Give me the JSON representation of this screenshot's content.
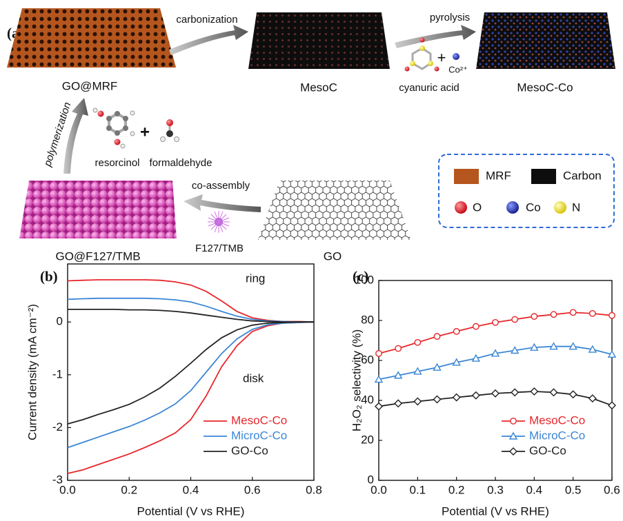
{
  "schematic": {
    "panel_label": "(a)",
    "go_mrf": "GO@MRF",
    "carbonization": "carbonization",
    "mesoc": "MesoC",
    "pyrolysis": "pyrolysis",
    "cyanuric_acid": "cyanuric acid",
    "co_ion": "Co²⁺",
    "mesoc_co": "MesoC-Co",
    "polymerization": "polymerization",
    "resorcinol": "resorcinol",
    "formaldehyde": "formaldehyde",
    "co_assembly": "co-assembly",
    "f127_tmb": "F127/TMB",
    "go_f127_tmb": "GO@F127/TMB",
    "go": "GO",
    "plus": "+",
    "legend": {
      "mrf": "MRF",
      "carbon": "Carbon",
      "o": "O",
      "co": "Co",
      "n": "N"
    }
  },
  "chart_data": [
    {
      "type": "line",
      "panel_label": "(b)",
      "xlabel": "Potential (V vs RHE)",
      "ylabel": "Current density (mA cm⁻²)",
      "annotations": [
        "ring",
        "disk"
      ],
      "x": [
        0,
        0.05,
        0.1,
        0.15,
        0.2,
        0.25,
        0.3,
        0.35,
        0.4,
        0.45,
        0.5,
        0.55,
        0.6,
        0.65,
        0.7,
        0.75,
        0.8
      ],
      "series": [
        {
          "name": "MesoC-Co",
          "color": "#e8262a",
          "values": [
            -2.87,
            -2.8,
            -2.7,
            -2.6,
            -2.5,
            -2.38,
            -2.25,
            -2.1,
            -1.85,
            -1.4,
            -0.85,
            -0.45,
            -0.18,
            -0.07,
            -0.02,
            -0.01,
            0
          ],
          "ring_values": [
            0.78,
            0.79,
            0.8,
            0.8,
            0.8,
            0.8,
            0.79,
            0.76,
            0.7,
            0.58,
            0.4,
            0.2,
            0.08,
            0.03,
            0.01,
            0.01,
            0
          ]
        },
        {
          "name": "MicroC-Co",
          "color": "#3a86d4",
          "values": [
            -2.38,
            -2.28,
            -2.18,
            -2.08,
            -1.98,
            -1.86,
            -1.72,
            -1.55,
            -1.3,
            -0.95,
            -0.6,
            -0.32,
            -0.14,
            -0.05,
            -0.02,
            -0.01,
            0
          ],
          "ring_values": [
            0.43,
            0.44,
            0.45,
            0.45,
            0.45,
            0.45,
            0.44,
            0.42,
            0.38,
            0.3,
            0.2,
            0.11,
            0.05,
            0.02,
            0.01,
            0,
            0
          ]
        },
        {
          "name": "GO-Co",
          "color": "#222222",
          "values": [
            -1.93,
            -1.85,
            -1.75,
            -1.66,
            -1.56,
            -1.42,
            -1.25,
            -1.03,
            -0.78,
            -0.52,
            -0.3,
            -0.15,
            -0.06,
            -0.02,
            -0.01,
            0,
            0
          ],
          "ring_values": [
            0.24,
            0.24,
            0.24,
            0.24,
            0.23,
            0.23,
            0.22,
            0.2,
            0.17,
            0.13,
            0.09,
            0.05,
            0.02,
            0.01,
            0,
            0,
            0
          ]
        }
      ],
      "xlim": [
        0,
        0.8
      ],
      "xticks": [
        {
          "value": 0,
          "label": "0.0"
        },
        {
          "value": 0.2,
          "label": "0.2"
        },
        {
          "value": 0.4,
          "label": "0.4"
        },
        {
          "value": 0.6,
          "label": "0.6"
        },
        {
          "value": 0.8,
          "label": "0.8"
        }
      ],
      "ylim": [
        -3,
        1.1
      ],
      "yticks": [
        -3,
        -2,
        -1,
        0
      ],
      "legend": "lower right"
    },
    {
      "type": "line",
      "panel_label": "(c)",
      "xlabel": "Potential (V vs RHE)",
      "ylabel": "H₂O₂ selectivity (%)",
      "x": [
        0,
        0.05,
        0.1,
        0.15,
        0.2,
        0.25,
        0.3,
        0.35,
        0.4,
        0.45,
        0.5,
        0.55,
        0.6
      ],
      "series": [
        {
          "name": "MesoC-Co",
          "color": "#e8262a",
          "marker": "circle",
          "values": [
            63.5,
            66,
            69,
            72,
            74.5,
            77,
            79,
            80.5,
            82,
            83,
            84,
            83.5,
            82.5
          ]
        },
        {
          "name": "MicroC-Co",
          "color": "#3a86d4",
          "marker": "triangle",
          "values": [
            50.5,
            52.5,
            54.5,
            56.5,
            59,
            61,
            63.5,
            65,
            66.5,
            67,
            67,
            65.5,
            63
          ]
        },
        {
          "name": "GO-Co",
          "color": "#222222",
          "marker": "diamond",
          "values": [
            37,
            38.5,
            39.5,
            40.5,
            41.5,
            42.5,
            43.5,
            44,
            44.5,
            44,
            43,
            41,
            37.5
          ]
        }
      ],
      "xlim": [
        0,
        0.6
      ],
      "xticks": [
        {
          "value": 0,
          "label": "0.0"
        },
        {
          "value": 0.1,
          "label": "0.1"
        },
        {
          "value": 0.2,
          "label": "0.2"
        },
        {
          "value": 0.3,
          "label": "0.3"
        },
        {
          "value": 0.4,
          "label": "0.4"
        },
        {
          "value": 0.5,
          "label": "0.5"
        },
        {
          "value": 0.6,
          "label": "0.6"
        }
      ],
      "ylim": [
        0,
        100
      ],
      "yticks": [
        0,
        20,
        40,
        60,
        80,
        100
      ],
      "legend": "lower right"
    }
  ]
}
